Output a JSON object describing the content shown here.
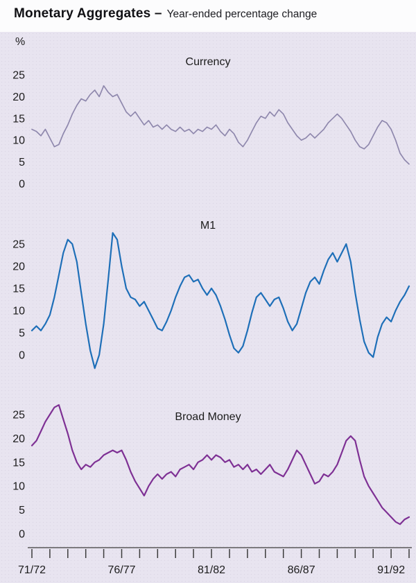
{
  "header": {
    "title_bold": "Monetary Aggregates –",
    "title_rest": "Year-ended percentage change",
    "unit_label": "%"
  },
  "colors": {
    "panel_background": "#e8e4f0",
    "header_background": "#fcfcfd",
    "text": "#1b1b1b",
    "axis": "#3b3b3b",
    "currency_line": "#8f88ad",
    "m1_line": "#1e6fb8",
    "broad_money_line": "#7e3094"
  },
  "x_axis": {
    "total_years": 21,
    "tick_interval": "1 fiscal year",
    "labels": [
      "71/72",
      "76/77",
      "81/82",
      "86/87",
      "91/92"
    ],
    "label_positions": [
      0,
      5,
      10,
      15,
      20
    ]
  },
  "chart_data": [
    {
      "type": "line",
      "title": "Currency",
      "ylabel": "%",
      "ylim": [
        0,
        25
      ],
      "yticks": [
        0,
        5,
        10,
        15,
        20,
        25
      ],
      "x_start": "71/72",
      "x_end": "91/92",
      "points_per_year": 4,
      "color": "#8f88ad",
      "stroke_width": 1.7,
      "values": [
        12.5,
        12,
        11,
        12.5,
        10.5,
        8.5,
        9,
        11.5,
        13.5,
        16,
        18,
        19.5,
        19,
        20.5,
        21.5,
        20,
        22.5,
        21,
        20,
        20.5,
        18.5,
        16.5,
        15.5,
        16.5,
        15,
        13.5,
        14.5,
        13,
        13.5,
        12.5,
        13.5,
        12.5,
        12,
        13,
        12,
        12.5,
        11.5,
        12.5,
        12,
        13,
        12.5,
        13.5,
        12,
        11,
        12.5,
        11.5,
        9.5,
        8.5,
        10,
        12,
        14,
        15.5,
        15,
        16.5,
        15.5,
        17,
        16,
        14,
        12.5,
        11,
        10,
        10.5,
        11.5,
        10.5,
        11.5,
        12.5,
        14,
        15,
        16,
        15,
        13.5,
        12,
        10,
        8.5,
        8,
        9,
        11,
        13,
        14.5,
        14,
        12.5,
        10,
        7,
        5.5,
        4.5
      ]
    },
    {
      "type": "line",
      "title": "M1",
      "ylabel": "%",
      "ylim": [
        0,
        25
      ],
      "yticks": [
        0,
        5,
        10,
        15,
        20,
        25
      ],
      "x_start": "71/72",
      "x_end": "91/92",
      "points_per_year": 4,
      "color": "#1e6fb8",
      "stroke_width": 2.2,
      "values": [
        5.5,
        6.5,
        5.5,
        7,
        9,
        13,
        18,
        23,
        26,
        25,
        21,
        14,
        7,
        1,
        -3,
        0,
        7,
        17,
        27.5,
        26,
        20,
        15,
        13,
        12.5,
        11,
        12,
        10,
        8,
        6,
        5.5,
        7.5,
        10,
        13,
        15.5,
        17.5,
        18,
        16.5,
        17,
        15,
        13.5,
        15,
        13.5,
        11,
        8,
        4.5,
        1.5,
        0.5,
        2,
        5.5,
        9.5,
        13,
        14,
        12.5,
        11,
        12.5,
        13,
        10.5,
        7.5,
        5.5,
        7,
        10.5,
        14,
        16.5,
        17.5,
        16,
        19,
        21.5,
        23,
        21,
        23,
        25,
        21,
        14,
        8,
        3,
        0.5,
        -0.5,
        4,
        7,
        8.5,
        7.5,
        10,
        12,
        13.5,
        15.5
      ]
    },
    {
      "type": "line",
      "title": "Broad Money",
      "ylabel": "%",
      "ylim": [
        0,
        25
      ],
      "yticks": [
        0,
        5,
        10,
        15,
        20,
        25
      ],
      "x_start": "71/72",
      "x_end": "91/92",
      "points_per_year": 4,
      "color": "#7e3094",
      "stroke_width": 2.2,
      "values": [
        18.5,
        19.5,
        21.5,
        23.5,
        25,
        26.5,
        27,
        24,
        21,
        17.5,
        15,
        13.5,
        14.5,
        14,
        15,
        15.5,
        16.5,
        17,
        17.5,
        17,
        17.5,
        15.5,
        13,
        11,
        9.5,
        8,
        10,
        11.5,
        12.5,
        11.5,
        12.5,
        13,
        12,
        13.5,
        14,
        14.5,
        13.5,
        15,
        15.5,
        16.5,
        15.5,
        16.5,
        16,
        15,
        15.5,
        14,
        14.5,
        13.5,
        14.5,
        13,
        13.5,
        12.5,
        13.5,
        14.5,
        13,
        12.5,
        12,
        13.5,
        15.5,
        17.5,
        16.5,
        14.5,
        12.5,
        10.5,
        11,
        12.5,
        12,
        13,
        14.5,
        17,
        19.5,
        20.5,
        19.5,
        15.5,
        12,
        10,
        8.5,
        7,
        5.5,
        4.5,
        3.5,
        2.5,
        2,
        3,
        3.5
      ]
    }
  ]
}
